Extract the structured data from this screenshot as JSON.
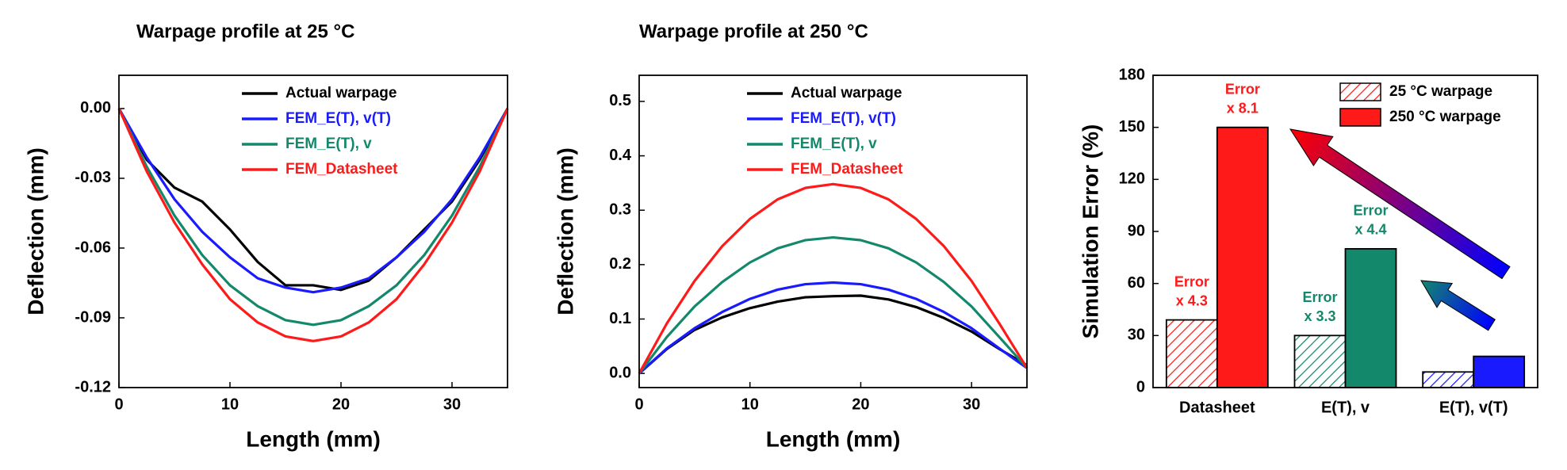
{
  "chart_data": [
    {
      "type": "line",
      "title": "Warpage profile at 25 °C",
      "xlabel": "Length (mm)",
      "ylabel": "Deflection (mm)",
      "xlim": [
        0,
        35
      ],
      "xticks": [
        0,
        10,
        20,
        30
      ],
      "ylim": [
        -0.12,
        0.0143
      ],
      "yticks": [
        {
          "value": 0,
          "label": "0.00"
        },
        -0.03,
        -0.06,
        -0.09,
        -0.12
      ],
      "legend": "upper center",
      "x": [
        0,
        2.5,
        5,
        7.5,
        10,
        12.5,
        15,
        17.5,
        20,
        22.5,
        25,
        27.5,
        30,
        32.5,
        35
      ],
      "series": [
        {
          "name": "Actual warpage",
          "color": "#000000",
          "values": [
            0,
            -0.022,
            -0.034,
            -0.04,
            -0.052,
            -0.066,
            -0.076,
            -0.076,
            -0.078,
            -0.074,
            -0.064,
            -0.052,
            -0.04,
            -0.022,
            0
          ]
        },
        {
          "name": "FEM_E(T), v(T)",
          "color": "#1a1aff",
          "values": [
            0,
            -0.021,
            -0.039,
            -0.053,
            -0.064,
            -0.073,
            -0.077,
            -0.079,
            -0.077,
            -0.073,
            -0.064,
            -0.053,
            -0.039,
            -0.021,
            0
          ]
        },
        {
          "name": "FEM_E(T), v",
          "color": "#13886b",
          "values": [
            0,
            -0.025,
            -0.046,
            -0.063,
            -0.076,
            -0.085,
            -0.091,
            -0.093,
            -0.091,
            -0.085,
            -0.076,
            -0.063,
            -0.046,
            -0.025,
            0
          ]
        },
        {
          "name": "FEM_Datasheet",
          "color": "#ff1a1a",
          "values": [
            0,
            -0.027,
            -0.049,
            -0.067,
            -0.082,
            -0.092,
            -0.098,
            -0.1,
            -0.098,
            -0.092,
            -0.082,
            -0.067,
            -0.049,
            -0.027,
            0
          ]
        }
      ]
    },
    {
      "type": "line",
      "title": "Warpage profile at 250 °C",
      "xlabel": "Length (mm)",
      "ylabel": "Deflection (mm)",
      "xlim": [
        0,
        35
      ],
      "xticks": [
        0,
        10,
        20,
        30
      ],
      "ylim": [
        -0.026,
        0.548
      ],
      "yticks": [
        {
          "value": 0,
          "label": "0.0"
        },
        0.1,
        0.2,
        0.3,
        0.4,
        0.5
      ],
      "legend": "upper center",
      "x": [
        0,
        2.5,
        5,
        7.5,
        10,
        12.5,
        15,
        17.5,
        20,
        22.5,
        25,
        27.5,
        30,
        32.5,
        35
      ],
      "series": [
        {
          "name": "Actual warpage",
          "color": "#000000",
          "values": [
            0,
            0.045,
            0.08,
            0.103,
            0.12,
            0.132,
            0.14,
            0.142,
            0.143,
            0.136,
            0.122,
            0.102,
            0.077,
            0.045,
            0.015
          ]
        },
        {
          "name": "FEM_E(T), v(T)",
          "color": "#1a1aff",
          "values": [
            0,
            0.046,
            0.083,
            0.113,
            0.137,
            0.154,
            0.164,
            0.167,
            0.164,
            0.154,
            0.137,
            0.113,
            0.083,
            0.046,
            0.01
          ]
        },
        {
          "name": "FEM_E(T), v",
          "color": "#13886b",
          "values": [
            0,
            0.067,
            0.123,
            0.168,
            0.204,
            0.23,
            0.245,
            0.25,
            0.245,
            0.23,
            0.204,
            0.168,
            0.123,
            0.067,
            0.01
          ]
        },
        {
          "name": "FEM_Datasheet",
          "color": "#ff1a1a",
          "values": [
            0,
            0.092,
            0.17,
            0.234,
            0.284,
            0.32,
            0.341,
            0.348,
            0.341,
            0.32,
            0.284,
            0.234,
            0.17,
            0.092,
            0.01
          ]
        }
      ]
    },
    {
      "type": "bar",
      "ylabel": "Simulation Error (%)",
      "ylim": [
        0,
        180
      ],
      "yticks": [
        0,
        30,
        60,
        90,
        120,
        150,
        180
      ],
      "legend": "upper right",
      "categories": [
        "Datasheet",
        "E(T), v",
        "E(T), v(T)"
      ],
      "series": [
        {
          "name": "25 °C warpage",
          "pattern": "hatched",
          "colors": [
            "#ff1a1a",
            "#13886b",
            "#1a1aff"
          ],
          "values": [
            39,
            30,
            9
          ],
          "annotations": [
            [
              "Error",
              "x 4.3"
            ],
            [
              "Error",
              "x 3.3"
            ],
            null
          ]
        },
        {
          "name": "250 °C warpage",
          "pattern": "solid",
          "colors": [
            "#ff1a1a",
            "#13886b",
            "#1a1aff"
          ],
          "values": [
            150,
            80,
            18
          ],
          "annotations": [
            [
              "Error",
              "x 8.1"
            ],
            [
              "Error",
              "x 4.4"
            ],
            null
          ]
        }
      ]
    }
  ]
}
